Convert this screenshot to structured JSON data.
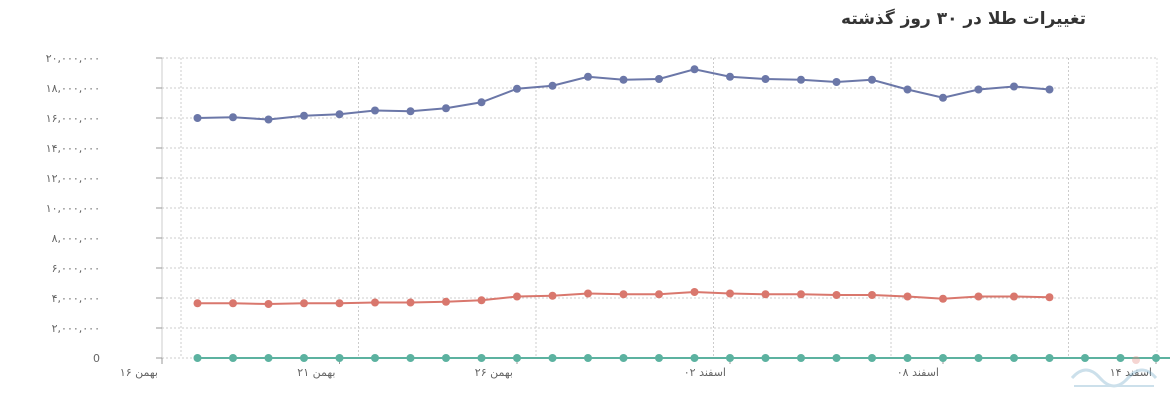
{
  "chart_data": {
    "type": "line",
    "title": "تغییرات طلا در ۳۰ روز گذشته",
    "xlabel": "",
    "ylabel": "",
    "ylim": [
      0,
      20000000
    ],
    "yticks": [
      0,
      2000000,
      4000000,
      6000000,
      8000000,
      10000000,
      12000000,
      14000000,
      16000000,
      18000000,
      20000000
    ],
    "ytick_labels": [
      "0",
      "۲,۰۰۰,۰۰۰",
      "۴,۰۰۰,۰۰۰",
      "۶,۰۰۰,۰۰۰",
      "۸,۰۰۰,۰۰۰",
      "۱۰,۰۰۰,۰۰۰",
      "۱۲,۰۰۰,۰۰۰",
      "۱۴,۰۰۰,۰۰۰",
      "۱۶,۰۰۰,۰۰۰",
      "۱۸,۰۰۰,۰۰۰",
      "۲۰,۰۰۰,۰۰۰"
    ],
    "x_tick_labels": [
      "۱۶ بهمن",
      "۲۱ بهمن",
      "۲۶ بهمن",
      "۰۲ اسفند",
      "۰۸ اسفند",
      "۱۴ اسفند"
    ],
    "x_tick_dates": [
      "1402-11-16",
      "1402-11-21",
      "1402-11-26",
      "1402-12-02",
      "1402-12-08",
      "1402-12-14"
    ],
    "x": [
      "1402-11-17",
      "1402-11-18",
      "1402-11-19",
      "1402-11-20",
      "1402-11-21",
      "1402-11-22",
      "1402-11-23",
      "1402-11-24",
      "1402-11-25",
      "1402-11-26",
      "1402-11-27",
      "1402-11-28",
      "1402-11-29",
      "1402-11-30",
      "1402-12-01",
      "1402-12-02",
      "1402-12-03",
      "1402-12-04",
      "1402-12-05",
      "1402-12-06",
      "1402-12-07",
      "1402-12-08",
      "1402-12-09",
      "1402-12-10",
      "1402-12-11",
      "1402-12-12",
      "1402-12-13",
      "1402-12-14",
      "1402-12-15",
      "1402-12-16",
      "1402-12-17"
    ],
    "grid": true,
    "legend": "none",
    "series": [
      {
        "color": "#6b77a8",
        "values": [
          16000000,
          16050000,
          15900000,
          16150000,
          16250000,
          16500000,
          16450000,
          16650000,
          17050000,
          17950000,
          18150000,
          18750000,
          18550000,
          18600000,
          19250000,
          18750000,
          18600000,
          18550000,
          18400000,
          18550000,
          17900000,
          17350000,
          17900000,
          18100000,
          17900000,
          null,
          null,
          null,
          null,
          null,
          null
        ]
      },
      {
        "color": "#d9776d",
        "values": [
          3650000,
          3650000,
          3600000,
          3650000,
          3650000,
          3700000,
          3700000,
          3750000,
          3850000,
          4100000,
          4150000,
          4300000,
          4250000,
          4250000,
          4400000,
          4300000,
          4250000,
          4250000,
          4200000,
          4200000,
          4100000,
          3950000,
          4100000,
          4100000,
          4050000,
          null,
          null,
          null,
          null,
          null,
          null
        ]
      },
      {
        "color": "#5cb2a0",
        "values": [
          0,
          0,
          0,
          0,
          0,
          0,
          0,
          0,
          0,
          0,
          0,
          0,
          0,
          0,
          0,
          0,
          0,
          0,
          0,
          0,
          0,
          0,
          0,
          0,
          0,
          0,
          0,
          0,
          0,
          0,
          0
        ]
      }
    ]
  }
}
